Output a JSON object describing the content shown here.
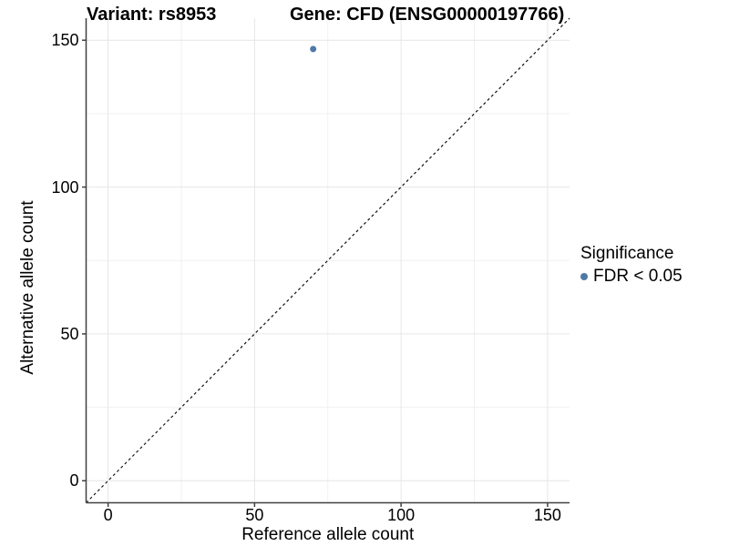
{
  "chart_data": {
    "type": "scatter",
    "title_left": "Variant: rs8953",
    "title_right": "Gene: CFD (ENSG00000197766)",
    "xlabel": "Reference allele count",
    "ylabel": "Alternative allele count",
    "x_ticks": [
      0,
      50,
      100,
      150
    ],
    "y_ticks": [
      0,
      50,
      100,
      150
    ],
    "x_minor_ticks": [
      25,
      75,
      125
    ],
    "y_minor_ticks": [
      25,
      75,
      125
    ],
    "xlim": [
      -7.5,
      157.5
    ],
    "ylim": [
      -7.5,
      157.5
    ],
    "grid": "major+minor",
    "points": [
      {
        "x": 70,
        "y": 147,
        "series": "FDR < 0.05"
      }
    ],
    "identity_line": {
      "from": [
        -7.5,
        -7.5
      ],
      "to": [
        157.5,
        157.5
      ],
      "style": "dashed",
      "color": "#111111"
    },
    "legend": {
      "title": "Significance",
      "position": "right",
      "items": [
        {
          "label": "FDR < 0.05",
          "color": "#4e79a7"
        }
      ]
    },
    "colors": {
      "point": "#4e79a7",
      "grid_major": "#e6e6e6",
      "grid_minor": "#f1f1f1",
      "axis_line": "#404040",
      "text": "#000000",
      "background": "#ffffff"
    }
  }
}
